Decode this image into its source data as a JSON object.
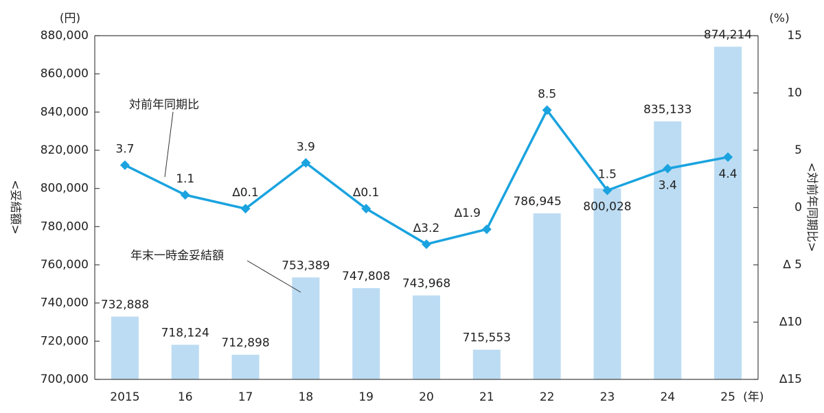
{
  "chart_data": {
    "type": "bar+line",
    "categories": [
      "2015",
      "16",
      "17",
      "18",
      "19",
      "20",
      "21",
      "22",
      "23",
      "24",
      "25"
    ],
    "x_suffix": "(年)",
    "series": [
      {
        "name": "年末一時金妥結額",
        "type": "bar",
        "axis": "left",
        "values": [
          732888,
          718124,
          712898,
          753389,
          747808,
          743968,
          715553,
          786945,
          800028,
          835133,
          874214
        ],
        "labels": [
          "732,888",
          "718,124",
          "712,898",
          "753,389",
          "747,808",
          "743,968",
          "715,553",
          "786,945",
          "800,028",
          "835,133",
          "874,214"
        ],
        "color": "#bcdcf3"
      },
      {
        "name": "対前年同期比",
        "type": "line",
        "axis": "right",
        "values": [
          3.7,
          1.1,
          -0.1,
          3.9,
          -0.1,
          -3.2,
          -1.9,
          8.5,
          1.5,
          3.4,
          4.4
        ],
        "labels": [
          "3.7",
          "1.1",
          "∆0.1",
          "3.9",
          "∆0.1",
          "∆3.2",
          "∆1.9",
          "8.5",
          "1.5",
          "3.4",
          "4.4"
        ],
        "color": "#1aa3df"
      }
    ],
    "left_axis": {
      "unit": "(円)",
      "title": "<妥結額>",
      "ylim": [
        700000,
        880000
      ],
      "ticks": [
        700000,
        720000,
        740000,
        760000,
        780000,
        800000,
        820000,
        840000,
        860000,
        880000
      ],
      "tick_labels": [
        "700,000",
        "720,000",
        "740,000",
        "760,000",
        "780,000",
        "800,000",
        "820,000",
        "840,000",
        "860,000",
        "880,000"
      ]
    },
    "right_axis": {
      "unit": "(%)",
      "title": "<対前年同期比>",
      "ylim": [
        -15,
        15
      ],
      "ticks": [
        15,
        10,
        5,
        0,
        -5,
        -10,
        -15
      ],
      "tick_labels": [
        "15",
        "10",
        "5",
        "0",
        "∆ 5",
        "∆10",
        "∆15"
      ]
    },
    "annotations": [
      {
        "text": "対前年同期比",
        "target": "line"
      },
      {
        "text": "年末一時金妥結額",
        "target": "bar"
      }
    ]
  }
}
